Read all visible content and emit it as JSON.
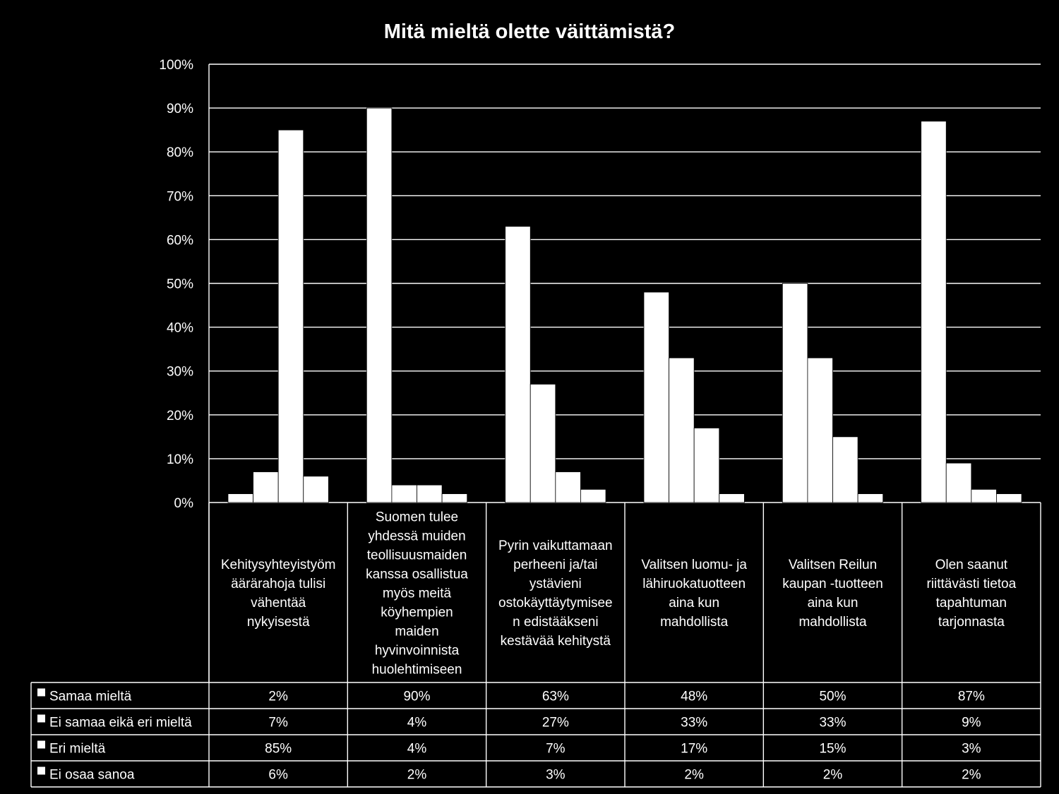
{
  "chart_data": {
    "type": "bar",
    "title": "Mitä mieltä olette väittämistä?",
    "xlabel": "",
    "ylabel": "",
    "ylim": [
      0,
      100
    ],
    "y_ticks": [
      "0%",
      "10%",
      "20%",
      "30%",
      "40%",
      "50%",
      "60%",
      "70%",
      "80%",
      "90%",
      "100%"
    ],
    "grid": true,
    "bar_color": "#ffffff",
    "background": "#000000",
    "categories": [
      [
        "Kehitysyhteyistyöm",
        "äärärahoja tulisi",
        "vähentää",
        "nykyisestä"
      ],
      [
        "Suomen tulee",
        "yhdessä muiden",
        "teollisuusmaiden",
        "kanssa osallistua",
        "myös meitä",
        "köyhempien",
        "maiden",
        "hyvinvoinnista",
        "huolehtimiseen"
      ],
      [
        "Pyrin vaikuttamaan",
        "perheeni ja/tai",
        "ystävieni",
        "ostokäyttäytymisee",
        "n edistääkseni",
        "kestävää kehitystä"
      ],
      [
        "Valitsen luomu- ja",
        "lähiruokatuotteen",
        "aina kun",
        "mahdollista"
      ],
      [
        "Valitsen Reilun",
        "kaupan -tuotteen",
        "aina kun",
        "mahdollista"
      ],
      [
        "Olen saanut",
        "riittävästi tietoa",
        "tapahtuman",
        "tarjonnasta"
      ]
    ],
    "series": [
      {
        "name": "Samaa mieltä",
        "values": [
          2,
          90,
          63,
          48,
          50,
          87
        ],
        "labels": [
          "2%",
          "90%",
          "63%",
          "48%",
          "50%",
          "87%"
        ]
      },
      {
        "name": "Ei samaa eikä eri mieltä",
        "values": [
          7,
          4,
          27,
          33,
          33,
          9
        ],
        "labels": [
          "7%",
          "4%",
          "27%",
          "33%",
          "33%",
          "9%"
        ]
      },
      {
        "name": "Eri mieltä",
        "values": [
          85,
          4,
          7,
          17,
          15,
          3
        ],
        "labels": [
          "85%",
          "4%",
          "7%",
          "17%",
          "15%",
          "3%"
        ]
      },
      {
        "name": "Ei osaa sanoa",
        "values": [
          6,
          2,
          3,
          2,
          2,
          2
        ],
        "labels": [
          "6%",
          "2%",
          "3%",
          "2%",
          "2%",
          "2%"
        ]
      }
    ]
  }
}
